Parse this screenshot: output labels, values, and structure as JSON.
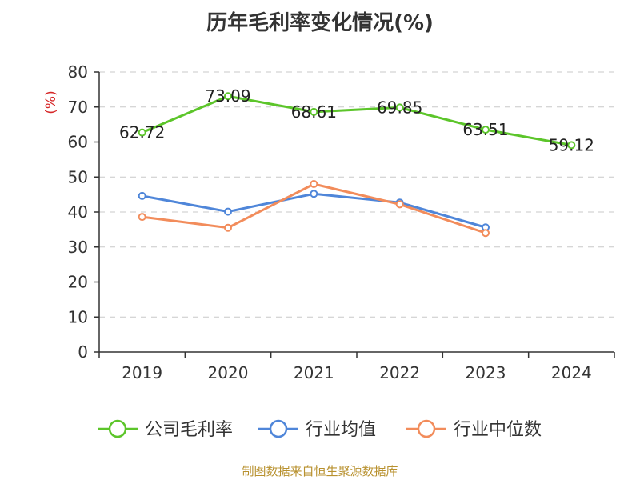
{
  "chart_data": {
    "type": "line",
    "title": "历年毛利率变化情况(%)",
    "ylabel": "(%)",
    "categories": [
      "2019",
      "2020",
      "2021",
      "2022",
      "2023",
      "2024"
    ],
    "ylim": [
      0,
      80
    ],
    "yticks": [
      "0",
      "10",
      "20",
      "30",
      "40",
      "50",
      "60",
      "70",
      "80"
    ],
    "grid": true,
    "legend_position": "bottom",
    "series": [
      {
        "name": "公司毛利率",
        "color": "#5cc52a",
        "values": [
          62.72,
          73.09,
          68.61,
          69.85,
          63.51,
          59.12
        ],
        "labels": [
          "62.72",
          "73.09",
          "68.61",
          "69.85",
          "63.51",
          "59.12"
        ]
      },
      {
        "name": "行业均值",
        "color": "#4f86d9",
        "values": [
          44.6,
          40.1,
          45.2,
          42.7,
          35.6,
          null
        ]
      },
      {
        "name": "行业中位数",
        "color": "#f28c5b",
        "values": [
          38.6,
          35.5,
          48.0,
          42.2,
          34.0,
          null
        ]
      }
    ]
  },
  "footer": {
    "source": "制图数据来自恒生聚源数据库"
  }
}
